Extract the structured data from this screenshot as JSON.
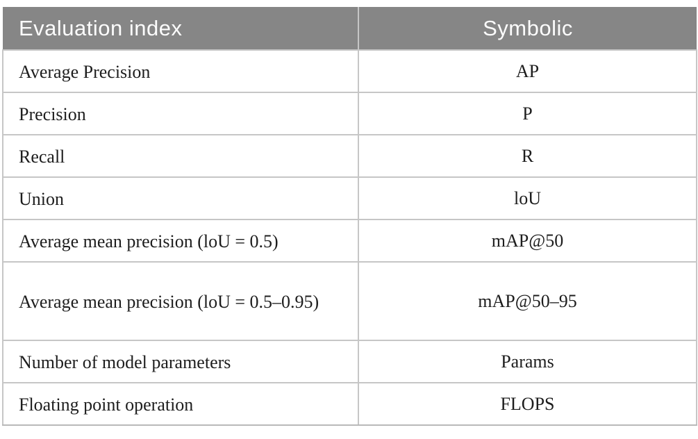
{
  "table": {
    "columns": [
      {
        "label": "Evaluation index"
      },
      {
        "label": "Symbolic"
      }
    ],
    "rows": [
      {
        "index": "Average Precision",
        "symbol": "AP"
      },
      {
        "index": "Precision",
        "symbol": "P"
      },
      {
        "index": "Recall",
        "symbol": "R"
      },
      {
        "index": "Union",
        "symbol": "loU"
      },
      {
        "index": "Average mean precision (loU = 0.5)",
        "symbol": "mAP@50"
      },
      {
        "index": "Average mean precision (loU = 0.5–0.95)",
        "symbol": "mAP@50–95"
      },
      {
        "index": "Number of model parameters",
        "symbol": "Params"
      },
      {
        "index": "Floating point operation",
        "symbol": "FLOPS"
      }
    ],
    "colors": {
      "header_bg": "#868686",
      "header_text": "#fcfcfc",
      "body_text": "#1d1d1d",
      "grid_line": "#c6c6c6",
      "page_bg": "#ffffff"
    }
  }
}
